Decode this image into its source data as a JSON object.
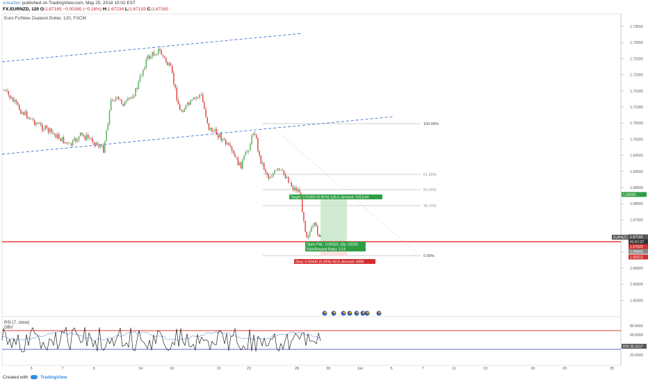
{
  "header": {
    "author": "erikarber",
    "published_text": " published on TradingView.com, May 25, 2018 10:02 EST",
    "symbol": "FX:EURNZD, 120",
    "open_label": "O:",
    "open": "1.67165",
    "change": "−0.00265 (−0.16%)",
    "high_label": "H:",
    "high": "1.67234",
    "low_label": "L:",
    "low": "1.67133",
    "close_label": "C:",
    "close": "1.67165"
  },
  "chart": {
    "title": "Euro Fx/New Zealand Dollar, 120, FXCM",
    "price_axis": [
      "1.73500",
      "1.73000",
      "1.72500",
      "1.72000",
      "1.71500",
      "1.71000",
      "1.70500",
      "1.70000",
      "1.69500",
      "1.69000",
      "1.68500",
      "1.68000",
      "1.67500",
      "1.67000",
      "1.66500",
      "1.66000",
      "1.65500",
      "1.65000"
    ],
    "price_tags": {
      "symbol_tag": "EURNZD",
      "last_price": "1.67165",
      "countdown": "01:57:27",
      "entry": "1.67020",
      "target": "1.68282",
      "entry2": "1.66843",
      "stop": "1.66512"
    },
    "fib_levels": [
      {
        "label": "100.00%"
      },
      {
        "label": "61.80%"
      },
      {
        "label": "50.00%"
      },
      {
        "label": "38.20%"
      },
      {
        "label": "0.00%"
      }
    ],
    "position": {
      "target_text": "Target: 0.01350 (0.81%) 135.0, Amount: 5313.94",
      "open_pl_text": "Open P&L: 0.00323, Qty: 23255",
      "risk_reward_text": "Risk/Reward Ratio: 3.14",
      "stop_text": "Stop: 0.00430 (0.26%) 43.0, Amount: 4900"
    },
    "colors": {
      "up": "#4caf50",
      "down": "#e53935",
      "target_zone": "#c8e6c9",
      "stop_line": "#e53935",
      "trend": "#3f6fd1"
    }
  },
  "indicator": {
    "rsi_label": "RSI (7, close)",
    "obv_label": "OBV",
    "axis": [
      "80.0000",
      "60.0000",
      "40.0000",
      "20.0000"
    ],
    "rsi_tag": "RSI",
    "rsi_value": "35.3157"
  },
  "time_axis": [
    "3",
    "7",
    "9",
    "14",
    "16",
    "21",
    "23",
    "28",
    "30",
    "Jun",
    "5",
    "7",
    "11",
    "13",
    "18",
    "20",
    "25"
  ],
  "footer": {
    "created_with": "Created with",
    "brand": "TradingView"
  }
}
